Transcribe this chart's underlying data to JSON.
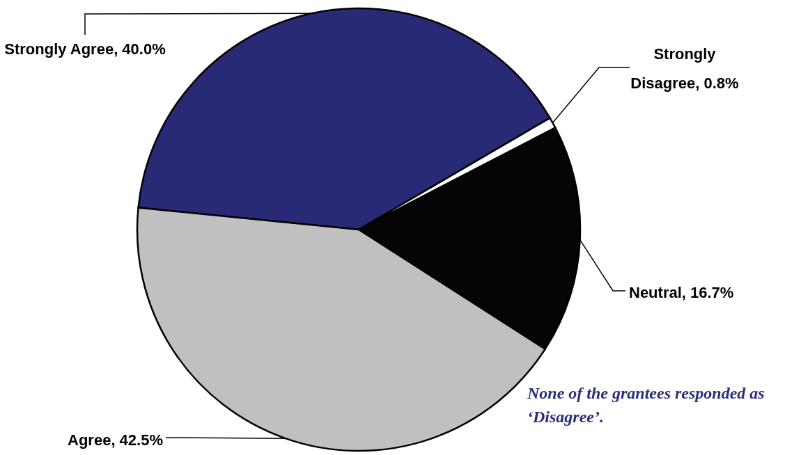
{
  "chart_data": {
    "type": "pie",
    "categories": [
      "Strongly Agree",
      "Strongly Disagree",
      "Neutral",
      "Agree"
    ],
    "values": [
      40.0,
      0.8,
      16.7,
      42.5
    ],
    "colors": [
      "#282a75",
      "#ffffff",
      "#050505",
      "#c0c0c0"
    ],
    "value_labels": [
      "40.0%",
      "0.8%",
      "16.7%",
      "42.5%"
    ],
    "annotations": [
      "None of the grantees responded as ‘Disagree’."
    ]
  }
}
